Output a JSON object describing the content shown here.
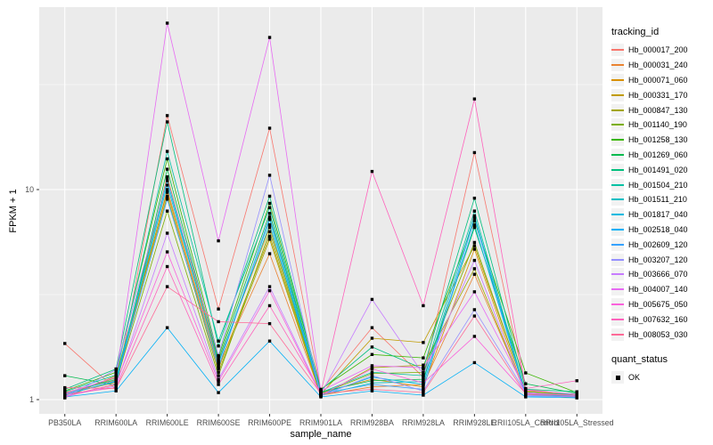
{
  "figure": {
    "y_axis_title": "FPKM + 1",
    "x_axis_title": "sample_name",
    "legend": {
      "tracking_title": "tracking_id",
      "quant_title": "quant_status",
      "quant_label": "OK"
    },
    "colors": {
      "panel_background": "#EBEBEB",
      "gridline": "#FFFFFF",
      "tick_label": "#4D4D4D",
      "marker": "#000000",
      "legend_key_background": "#F2F2F2"
    }
  },
  "chart_data": {
    "type": "line",
    "title": "",
    "xlabel": "sample_name",
    "ylabel": "FPKM + 1",
    "y_scale": "log10",
    "ylim": [
      0.85,
      75
    ],
    "y_major_gridlines": [
      1,
      10
    ],
    "y_minor_gridlines": [
      3.162,
      31.62
    ],
    "y_tick_labels": [
      "1",
      "10"
    ],
    "grid": true,
    "legend_position": "right",
    "legend_title": "tracking_id",
    "point_legend_title": "quant_status",
    "point_legend_label": "OK",
    "point_shape": "filled-black-square",
    "categories": [
      "PB350LA",
      "RRIM600LA",
      "RRIM600LE",
      "RRIM600SE",
      "RRIM600PE",
      "RRIM901LA",
      "RRIM928BA",
      "RRIM928LA",
      "RRIM928LE",
      "RRII105LA_Control",
      "RRII105LA_Stressed"
    ],
    "series": [
      {
        "name": "Hb_000017_200",
        "color": "#F8766D",
        "values": [
          1.85,
          1.12,
          22.5,
          2.7,
          19.6,
          1.1,
          2.2,
          1.28,
          15,
          1.12,
          1.05
        ]
      },
      {
        "name": "Hb_000031_240",
        "color": "#EA8331",
        "values": [
          1.04,
          1.18,
          10,
          1.45,
          4.95,
          1.05,
          1.15,
          1.18,
          3.95,
          1.08,
          1.03
        ]
      },
      {
        "name": "Hb_000071_060",
        "color": "#D89000",
        "values": [
          1.08,
          1.24,
          11.5,
          1.52,
          6.6,
          1.08,
          1.25,
          1.15,
          5.2,
          1.05,
          1.04
        ]
      },
      {
        "name": "Hb_000331_170",
        "color": "#C09B00",
        "values": [
          1.02,
          1.3,
          9.7,
          1.4,
          6,
          1.06,
          1.96,
          1.87,
          5.4,
          1.1,
          1.06
        ]
      },
      {
        "name": "Hb_000847_130",
        "color": "#A3A500",
        "values": [
          1.05,
          1.27,
          9.3,
          1.35,
          5.8,
          1.04,
          1.42,
          1.46,
          4.2,
          1.06,
          1.02
        ]
      },
      {
        "name": "Hb_001140_190",
        "color": "#7CAE00",
        "values": [
          1.06,
          1.21,
          7.9,
          1.3,
          6.3,
          1.07,
          1.33,
          1.35,
          5.6,
          1.09,
          1.05
        ]
      },
      {
        "name": "Hb_001258_130",
        "color": "#39B600",
        "values": [
          1.1,
          1.35,
          14,
          1.6,
          8.6,
          1.12,
          1.64,
          1.58,
          7.1,
          1.34,
          1.08
        ]
      },
      {
        "name": "Hb_001269_060",
        "color": "#00BB4E",
        "values": [
          1.3,
          1.17,
          12.5,
          1.55,
          7.7,
          1.09,
          1.23,
          1.25,
          6.6,
          1.19,
          1.07
        ]
      },
      {
        "name": "Hb_001491_020",
        "color": "#00BF7D",
        "values": [
          1.12,
          1.4,
          21,
          1.8,
          9.3,
          1.11,
          1.78,
          1.4,
          9.1,
          1.12,
          1.09
        ]
      },
      {
        "name": "Hb_001504_210",
        "color": "#00C1A3",
        "values": [
          1.09,
          1.31,
          15.2,
          1.9,
          8.2,
          1.08,
          1.35,
          1.3,
          7.9,
          1.07,
          1.06
        ]
      },
      {
        "name": "Hb_001511_210",
        "color": "#00BFC4",
        "values": [
          1.07,
          1.25,
          11,
          1.48,
          7.2,
          1.05,
          1.2,
          1.22,
          7.5,
          1.05,
          1.03
        ]
      },
      {
        "name": "Hb_001817_040",
        "color": "#00BAE0",
        "values": [
          1.05,
          1.23,
          10.5,
          1.5,
          6.8,
          1.06,
          1.28,
          1.18,
          6.8,
          1.06,
          1.04
        ]
      },
      {
        "name": "Hb_002518_040",
        "color": "#00B0F6",
        "values": [
          1.03,
          1.1,
          2.2,
          1.08,
          1.9,
          1.03,
          1.1,
          1.05,
          1.5,
          1.03,
          1.02
        ]
      },
      {
        "name": "Hb_002609_120",
        "color": "#35A2FF",
        "values": [
          1.06,
          1.22,
          9,
          1.42,
          7.4,
          1.07,
          1.18,
          1.12,
          7.3,
          1.04,
          1.03
        ]
      },
      {
        "name": "Hb_003207_120",
        "color": "#9590FF",
        "values": [
          1.02,
          1.39,
          11.2,
          1.62,
          11.7,
          1.04,
          1.3,
          1.1,
          2.68,
          1.08,
          1.04
        ]
      },
      {
        "name": "Hb_003666_070",
        "color": "#C77CFF",
        "values": [
          1.04,
          1.16,
          6.2,
          1.25,
          3.45,
          1.06,
          3,
          1.32,
          4.6,
          1.05,
          1.03
        ]
      },
      {
        "name": "Hb_004007_140",
        "color": "#E76BF3",
        "values": [
          1.07,
          1.28,
          62,
          5.7,
          53,
          1.1,
          1.45,
          1.42,
          3.26,
          1.11,
          1.06
        ]
      },
      {
        "name": "Hb_005675_050",
        "color": "#FA62DB",
        "values": [
          1.03,
          1.19,
          5.05,
          1.22,
          3.3,
          1.05,
          1.4,
          1.2,
          2,
          1.07,
          1.05
        ]
      },
      {
        "name": "Hb_007632_160",
        "color": "#FF62BC",
        "values": [
          1.06,
          1.14,
          4.3,
          1.18,
          2.8,
          1.08,
          12.2,
          2.8,
          27,
          1.13,
          1.23
        ]
      },
      {
        "name": "Hb_008053_030",
        "color": "#FF6A98",
        "values": [
          1.14,
          1.13,
          3.45,
          2.35,
          2.3,
          1.07,
          1.12,
          1.08,
          2.5,
          1.06,
          1.05
        ]
      }
    ]
  }
}
